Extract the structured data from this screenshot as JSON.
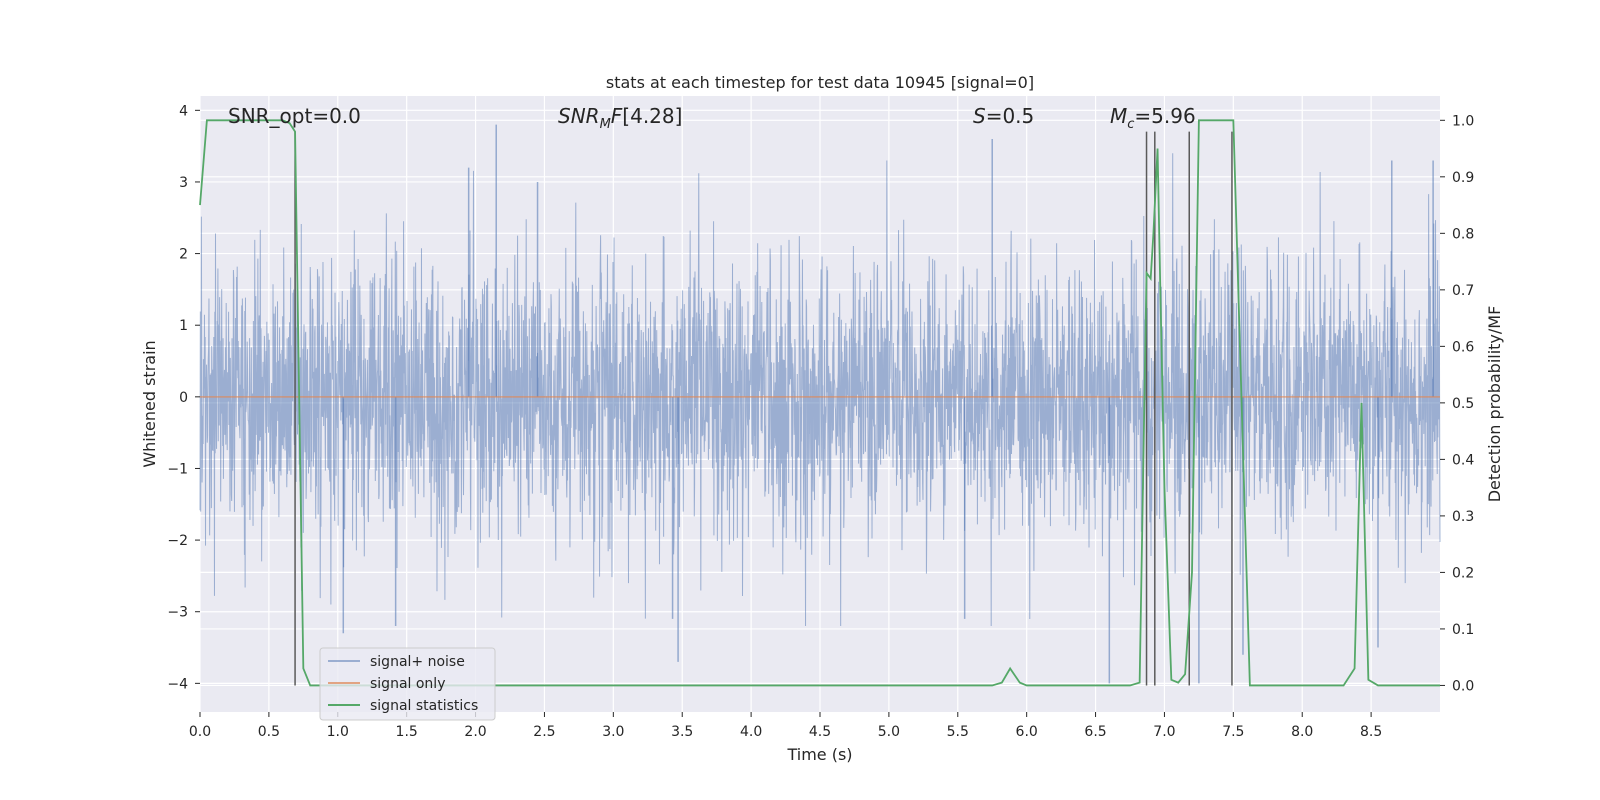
{
  "chart_data": {
    "type": "line",
    "title": "stats at each timestep for test data 10945 [signal=0]",
    "xlabel": "Time (s)",
    "ylabel_left": "Whitened strain",
    "ylabel_right": "Detection probability/MF",
    "xlim": [
      0.0,
      9.0
    ],
    "ylim_left": [
      -4.4,
      4.2
    ],
    "ylim_right": [
      -0.047,
      1.043
    ],
    "xticks": [
      "0.0",
      "0.5",
      "1.0",
      "1.5",
      "2.0",
      "2.5",
      "3.0",
      "3.5",
      "4.0",
      "4.5",
      "5.0",
      "5.5",
      "6.0",
      "6.5",
      "7.0",
      "7.5",
      "8.0",
      "8.5"
    ],
    "yticks_left": [
      "4",
      "3",
      "2",
      "1",
      "0",
      "−1",
      "−2",
      "−3",
      "−4"
    ],
    "yticks_right": [
      "1.0",
      "0.9",
      "0.8",
      "0.7",
      "0.6",
      "0.5",
      "0.4",
      "0.3",
      "0.2",
      "0.1",
      "0.0"
    ],
    "grid": true,
    "legend_position": "lower-left",
    "annotations": {
      "snr_opt": "SNR_opt=0.0",
      "snr_mf": "[4.28]",
      "s": "=0.5",
      "mc": "=5.96"
    },
    "series": [
      {
        "name": "signal+ noise",
        "color": "#4c72b0",
        "description_note": "whitened noise strain, sampled densely; envelope mostly within [-2.5, 2.5] with spikes to about ±3.8",
        "spikes": [
          {
            "x": 1.04,
            "y": -3.3
          },
          {
            "x": 1.42,
            "y": -3.2
          },
          {
            "x": 2.15,
            "y": 3.8
          },
          {
            "x": 3.47,
            "y": -3.7
          },
          {
            "x": 3.43,
            "y": -3.1
          },
          {
            "x": 5.75,
            "y": 3.6
          },
          {
            "x": 5.55,
            "y": -3.1
          },
          {
            "x": 6.6,
            "y": -4.0
          },
          {
            "x": 7.25,
            "y": -4.0
          },
          {
            "x": 7.57,
            "y": -3.6
          },
          {
            "x": 8.55,
            "y": -3.5
          },
          {
            "x": 8.65,
            "y": 3.3
          },
          {
            "x": 8.95,
            "y": 3.3
          },
          {
            "x": 2.45,
            "y": 3.0
          },
          {
            "x": 1.95,
            "y": 3.2
          }
        ]
      },
      {
        "name": "signal only",
        "color": "#dd8452",
        "x": [
          0.0,
          9.0
        ],
        "y": [
          0.0,
          0.0
        ]
      },
      {
        "name": "signal statistics",
        "color": "#55a868",
        "axis": "right",
        "x": [
          0.0,
          0.05,
          0.1,
          0.15,
          0.6,
          0.65,
          0.69,
          0.75,
          0.8,
          5.75,
          5.82,
          5.88,
          5.95,
          6.0,
          6.75,
          6.82,
          6.87,
          6.9,
          6.92,
          6.95,
          6.97,
          7.0,
          7.05,
          7.1,
          7.15,
          7.2,
          7.25,
          7.45,
          7.5,
          7.56,
          7.62,
          8.3,
          8.38,
          8.43,
          8.48,
          8.55,
          9.0
        ],
        "y": [
          0.85,
          1.0,
          1.0,
          1.0,
          1.0,
          0.995,
          0.98,
          0.03,
          0.0,
          0.0,
          0.005,
          0.03,
          0.005,
          0.0,
          0.0,
          0.005,
          0.73,
          0.72,
          0.8,
          0.95,
          0.7,
          0.35,
          0.01,
          0.005,
          0.02,
          0.2,
          1.0,
          1.0,
          1.0,
          0.5,
          0.0,
          0.0,
          0.03,
          0.5,
          0.01,
          0.0,
          0.0
        ]
      }
    ],
    "vertical_markers": {
      "color": "#5a5a5a",
      "x": [
        0.69,
        6.87,
        6.93,
        7.18,
        7.49
      ],
      "y_top": 0.98
    }
  }
}
